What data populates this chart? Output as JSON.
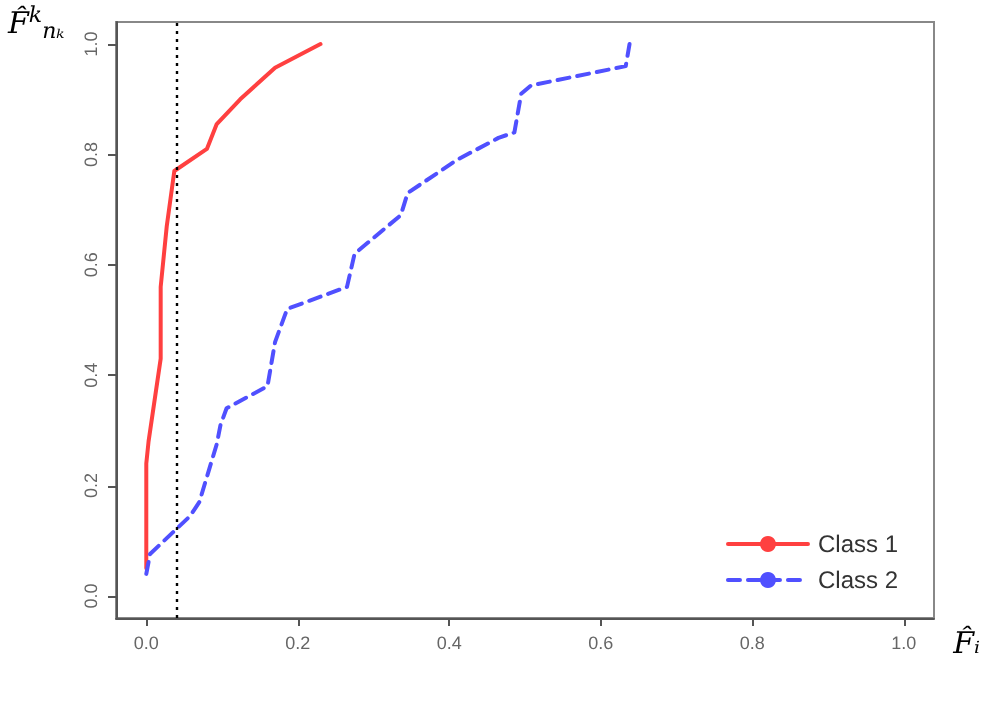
{
  "chart_data": {
    "type": "line",
    "xlabel": "F̂ᵢ",
    "ylabel": "F̂$^{k}$$_{nₖ}$",
    "xlim": [
      -0.04,
      1.04
    ],
    "ylim": [
      -0.04,
      1.04
    ],
    "xticks": [
      {
        "value": 0,
        "label": "0.0"
      },
      0.2,
      0.4,
      0.6,
      0.8,
      {
        "value": 1,
        "label": "1.0"
      }
    ],
    "yticks": [
      {
        "value": 0,
        "label": "0.0"
      },
      0.2,
      0.4,
      0.6,
      0.8,
      {
        "value": 1,
        "label": "1.0"
      }
    ],
    "grid": false,
    "legend": "bottom right",
    "marker": "none",
    "ref_lines": [
      {
        "axis": "x",
        "value": 0.04,
        "label": null,
        "color": "#000000",
        "line_style": "dotted"
      }
    ],
    "series": [
      {
        "name": "Class 1",
        "color": "#ff4040",
        "line_style": "solid",
        "x": [
          0,
          0,
          0.003,
          0.019,
          0.019,
          0.027,
          0.037,
          0.08,
          0.093,
          0.124,
          0.17,
          0.23
        ],
        "values": [
          0.05,
          0.24,
          0.28,
          0.43,
          0.56,
          0.67,
          0.77,
          0.81,
          0.855,
          0.9,
          0.957,
          1.0
        ]
      },
      {
        "name": "Class 2",
        "color": "#5050ff",
        "line_style": "dashed",
        "x": [
          0,
          0.005,
          0.058,
          0.07,
          0.093,
          0.098,
          0.106,
          0.16,
          0.17,
          0.186,
          0.265,
          0.275,
          0.336,
          0.345,
          0.41,
          0.465,
          0.486,
          0.495,
          0.508,
          0.633,
          0.638
        ],
        "values": [
          0.04,
          0.076,
          0.145,
          0.17,
          0.275,
          0.31,
          0.34,
          0.38,
          0.46,
          0.52,
          0.56,
          0.62,
          0.69,
          0.73,
          0.79,
          0.83,
          0.84,
          0.91,
          0.925,
          0.96,
          1.0
        ]
      }
    ]
  }
}
